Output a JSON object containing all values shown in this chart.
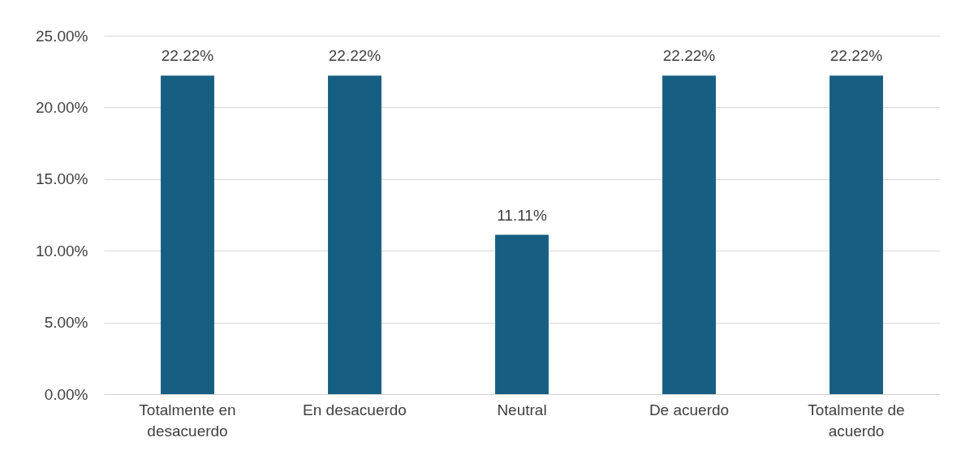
{
  "chart_data": {
    "type": "bar",
    "categories": [
      "Totalmente en desacuerdo",
      "En desacuerdo",
      "Neutral",
      "De acuerdo",
      "Totalmente de acuerdo"
    ],
    "values": [
      22.22,
      22.22,
      11.11,
      22.22,
      22.22
    ],
    "value_labels": [
      "22.22%",
      "22.22%",
      "11.11%",
      "22.22%",
      "22.22%"
    ],
    "color": "#175f82",
    "ylim": [
      0,
      25
    ],
    "yticks": [
      {
        "value": 0,
        "label": "0.00%"
      },
      {
        "value": 5,
        "label": "5.00%"
      },
      {
        "value": 10,
        "label": "10.00%"
      },
      {
        "value": 15,
        "label": "15.00%"
      },
      {
        "value": 20,
        "label": "20.00%"
      },
      {
        "value": 25,
        "label": "25.00%"
      }
    ],
    "grid": "y"
  }
}
